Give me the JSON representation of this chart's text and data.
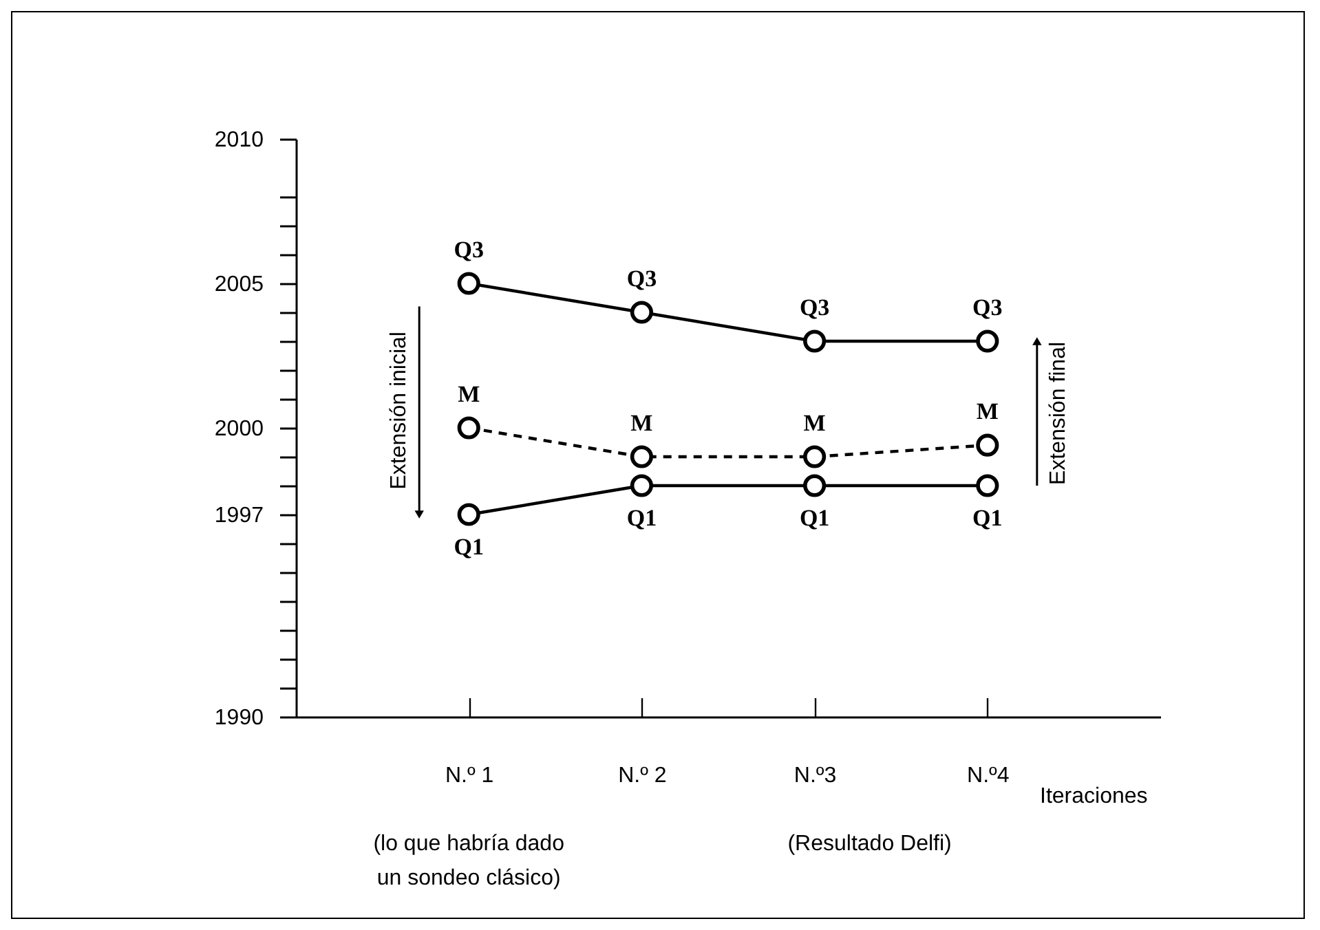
{
  "chart_data": {
    "type": "line",
    "categories": [
      "N.º 1",
      "N.º 2",
      "N.º3",
      "N.º4"
    ],
    "xlabel": "Iteraciones",
    "series": [
      {
        "name": "Q3",
        "color": "#000000",
        "line_style": "solid",
        "values": [
          2005,
          2004,
          2003,
          2003
        ]
      },
      {
        "name": "M",
        "color": "#000000",
        "line_style": "dashed",
        "values": [
          2000,
          1999,
          1999,
          1999.4
        ]
      },
      {
        "name": "Q1",
        "color": "#000000",
        "line_style": "solid",
        "values": [
          1997,
          1998,
          1998,
          1998
        ]
      }
    ],
    "ylim": [
      1990,
      2010
    ],
    "yticks": [
      1990,
      {
        "value": 1991,
        "label": null
      },
      {
        "value": 1992,
        "label": null
      },
      {
        "value": 1993,
        "label": null
      },
      {
        "value": 1994,
        "label": null
      },
      {
        "value": 1995,
        "label": null
      },
      {
        "value": 1996,
        "label": null
      },
      1997,
      {
        "value": 1998,
        "label": null
      },
      {
        "value": 1999,
        "label": null
      },
      2000,
      {
        "value": 2001,
        "label": null
      },
      {
        "value": 2002,
        "label": null
      },
      {
        "value": 2003,
        "label": null
      },
      {
        "value": 2004,
        "label": null
      },
      2005,
      {
        "value": 2006,
        "label": null
      },
      {
        "value": 2007,
        "label": null
      },
      {
        "value": 2008,
        "label": null
      },
      2010
    ],
    "marker": "circle",
    "grid": false,
    "legend": false,
    "annotations": [
      "Extensión inicial",
      "Extensión final",
      "(lo que habría dado un sondeo clásico)",
      "(Resultado Delfi)"
    ]
  }
}
